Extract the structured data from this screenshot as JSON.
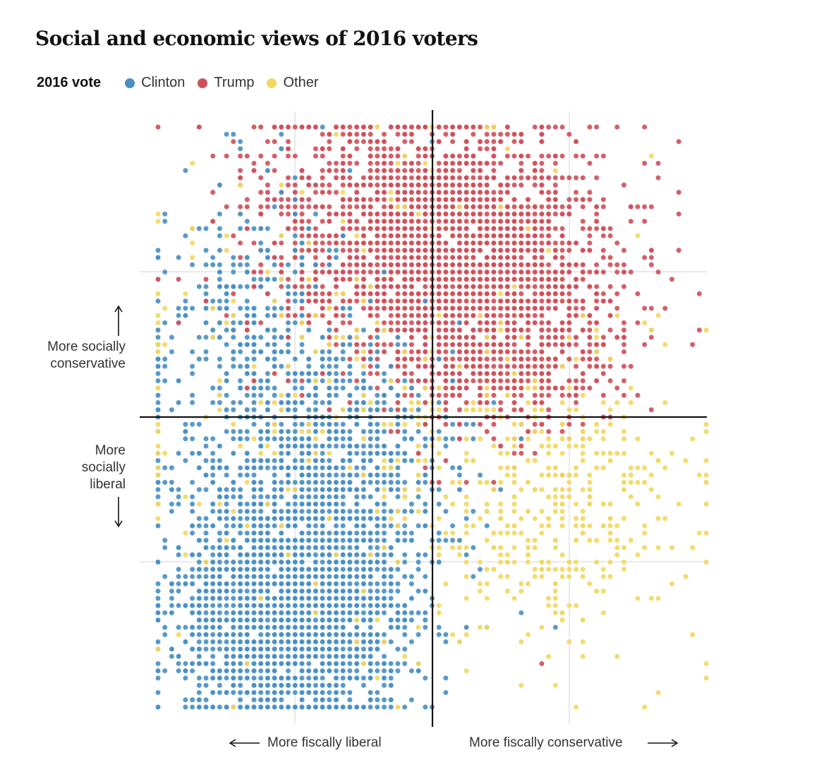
{
  "title": "Social and economic views of 2016 voters",
  "legend": {
    "title": "2016 vote",
    "items": [
      {
        "label": "Clinton",
        "color": "#4a90c4"
      },
      {
        "label": "Trump",
        "color": "#d0505a"
      },
      {
        "label": "Other",
        "color": "#f2d862"
      }
    ]
  },
  "axis_labels": {
    "up": "More socially conservative",
    "down": "More socially liberal",
    "left": "More fiscally liberal",
    "right": "More fiscally conservative"
  },
  "chart_data": {
    "type": "scatter",
    "title": "Social and economic views of 2016 voters",
    "xlabel": "",
    "ylabel": "",
    "xlim": [
      -2,
      2
    ],
    "ylim": [
      -2,
      2
    ],
    "grid": true,
    "legend_position": "top-left",
    "quadrant_axes": {
      "x": 0,
      "y": 0
    },
    "series": [
      {
        "name": "Clinton",
        "color": "#4a90c4",
        "approx_count": 3600,
        "clusters": [
          {
            "center": [
              -1.05,
              -1.35
            ],
            "spread": [
              0.42,
              0.38
            ],
            "weight": 0.62
          },
          {
            "center": [
              -0.8,
              -0.4
            ],
            "spread": [
              0.5,
              0.45
            ],
            "weight": 0.25
          },
          {
            "center": [
              -1.2,
              0.5
            ],
            "spread": [
              0.45,
              0.6
            ],
            "weight": 0.13
          }
        ],
        "points_sample": [
          [
            -2,
            -1.0
          ],
          [
            -1.6,
            -1.5
          ],
          [
            -1.2,
            -1.2
          ],
          [
            -1.0,
            -1.6
          ],
          [
            -0.6,
            -0.8
          ],
          [
            -0.3,
            -0.4
          ],
          [
            0.0,
            -1.0
          ],
          [
            0.2,
            -0.5
          ],
          [
            0.9,
            -1.45
          ],
          [
            -1.5,
            0.8
          ],
          [
            -0.9,
            0.4
          ]
        ]
      },
      {
        "name": "Trump",
        "color": "#d0505a",
        "approx_count": 3400,
        "clusters": [
          {
            "center": [
              0.2,
              1.15
            ],
            "spread": [
              0.5,
              0.42
            ],
            "weight": 0.6
          },
          {
            "center": [
              -0.5,
              1.3
            ],
            "spread": [
              0.55,
              0.45
            ],
            "weight": 0.2
          },
          {
            "center": [
              0.5,
              0.5
            ],
            "spread": [
              0.45,
              0.35
            ],
            "weight": 0.2
          }
        ],
        "points_sample": [
          [
            0.0,
            1.2
          ],
          [
            0.5,
            1.0
          ],
          [
            0.3,
            0.6
          ],
          [
            -0.4,
            1.5
          ],
          [
            -1.5,
            1.8
          ],
          [
            1.8,
            1.15
          ],
          [
            1.5,
            0.65
          ],
          [
            0.8,
            -1.7
          ],
          [
            -0.5,
            0.2
          ],
          [
            1.0,
            0.0
          ],
          [
            -1.1,
            1.0
          ]
        ]
      },
      {
        "name": "Other",
        "color": "#f2d862",
        "approx_count": 900,
        "clusters": [
          {
            "center": [
              -0.4,
              0.1
            ],
            "spread": [
              0.9,
              0.9
            ],
            "weight": 0.6
          },
          {
            "center": [
              0.9,
              -0.6
            ],
            "spread": [
              0.5,
              0.5
            ],
            "weight": 0.4
          }
        ],
        "points_sample": [
          [
            1.6,
            1.8
          ],
          [
            2.0,
            -1.7
          ],
          [
            1.3,
            -0.6
          ],
          [
            1.2,
            -1.0
          ],
          [
            0.5,
            -0.9
          ],
          [
            -0.2,
            0.0
          ],
          [
            0.8,
            -0.2
          ],
          [
            1.0,
            0.2
          ]
        ]
      }
    ]
  }
}
